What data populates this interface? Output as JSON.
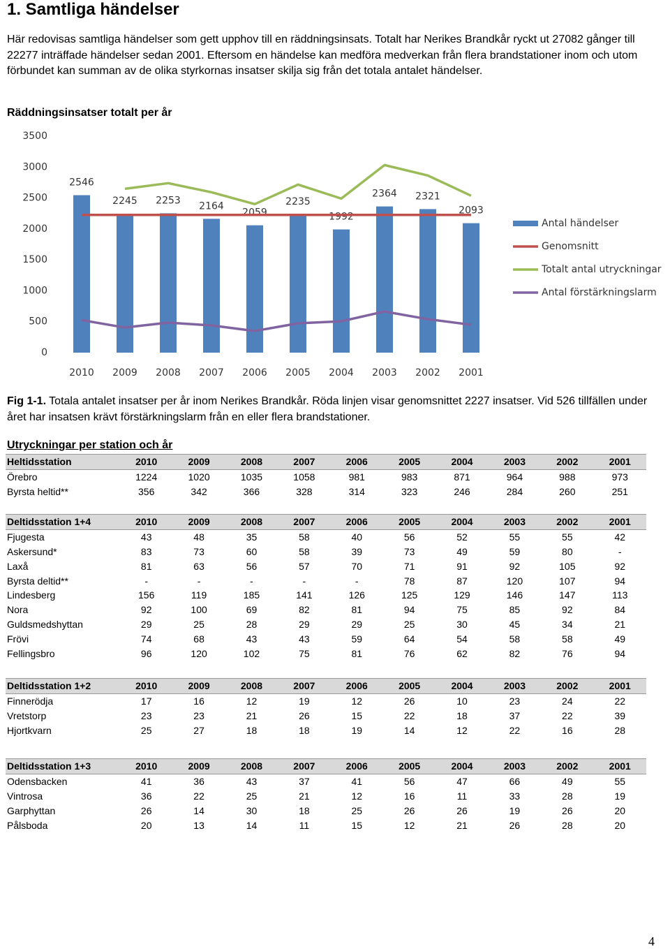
{
  "heading": "1. Samtliga händelser",
  "intro": "Här redovisas samtliga händelser som gett upphov till en räddningsinsats. Totalt har Nerikes Brandkår ryckt ut 27082 gånger till 22277 inträffade händelser sedan 2001. Eftersom en händelse kan medföra medverkan från flera brandstationer inom och utom förbundet kan summan av de olika styrkornas insatser skilja sig från det totala antalet händelser.",
  "chart_data": {
    "type": "bar",
    "title": "Räddningsinsatser totalt per år",
    "categories": [
      "2010",
      "2009",
      "2008",
      "2007",
      "2006",
      "2005",
      "2004",
      "2003",
      "2002",
      "2001"
    ],
    "ylim": [
      0,
      3500
    ],
    "yticks": [
      0,
      500,
      1000,
      1500,
      2000,
      2500,
      3000,
      3500
    ],
    "grid": false,
    "legend": "right",
    "series": [
      {
        "name": "Antal händelser",
        "type": "bar",
        "color": "#4f81bd",
        "values": [
          2546,
          2245,
          2253,
          2164,
          2059,
          2235,
          1992,
          2364,
          2321,
          2093
        ]
      },
      {
        "name": "Genomsnitt",
        "type": "line",
        "color": "#c0504d",
        "values": [
          2227,
          2227,
          2227,
          2227,
          2227,
          2227,
          2227,
          2227,
          2227,
          2227
        ]
      },
      {
        "name": "Totalt antal utryckningar",
        "type": "line",
        "color": "#9bbb59",
        "values": [
          null,
          2649,
          2740,
          2593,
          2401,
          2717,
          2491,
          3033,
          2864,
          2537
        ]
      },
      {
        "name": "Antal förstärkningslarm",
        "type": "line",
        "color": "#8064a2",
        "values": [
          526,
          406,
          485,
          440,
          350,
          474,
          507,
          665,
          541,
          451
        ]
      }
    ]
  },
  "caption": {
    "label": "Fig 1-1.",
    "text": "Totala antalet insatser per år inom Nerikes Brandkår. Röda linjen visar genomsnittet 2227 insatser. Vid 526 tillfällen under året har insatsen krävt förstärkningslarm från en eller flera brandstationer."
  },
  "tables_title": "Utryckningar per station och år",
  "tables": [
    {
      "header": [
        "Heltidsstation",
        "2010",
        "2009",
        "2008",
        "2007",
        "2006",
        "2005",
        "2004",
        "2003",
        "2002",
        "2001"
      ],
      "rows": [
        [
          "Örebro",
          "1224",
          "1020",
          "1035",
          "1058",
          "981",
          "983",
          "871",
          "964",
          "988",
          "973"
        ],
        [
          "Byrsta heltid**",
          "356",
          "342",
          "366",
          "328",
          "314",
          "323",
          "246",
          "284",
          "260",
          "251"
        ]
      ]
    },
    {
      "header": [
        "Deltidsstation 1+4",
        "2010",
        "2009",
        "2008",
        "2007",
        "2006",
        "2005",
        "2004",
        "2003",
        "2002",
        "2001"
      ],
      "rows": [
        [
          "Fjugesta",
          "43",
          "48",
          "35",
          "58",
          "40",
          "56",
          "52",
          "55",
          "55",
          "42"
        ],
        [
          "Askersund*",
          "83",
          "73",
          "60",
          "58",
          "39",
          "73",
          "49",
          "59",
          "80",
          "-"
        ],
        [
          "Laxå",
          "81",
          "63",
          "56",
          "57",
          "70",
          "71",
          "91",
          "92",
          "105",
          "92"
        ],
        [
          "Byrsta deltid**",
          "-",
          "-",
          "-",
          "-",
          "-",
          "78",
          "87",
          "120",
          "107",
          "94"
        ],
        [
          "Lindesberg",
          "156",
          "119",
          "185",
          "141",
          "126",
          "125",
          "129",
          "146",
          "147",
          "113"
        ],
        [
          "Nora",
          "92",
          "100",
          "69",
          "82",
          "81",
          "94",
          "75",
          "85",
          "92",
          "84"
        ],
        [
          "Guldsmedshyttan",
          "29",
          "25",
          "28",
          "29",
          "29",
          "25",
          "30",
          "45",
          "34",
          "21"
        ],
        [
          "Frövi",
          "74",
          "68",
          "43",
          "43",
          "59",
          "64",
          "54",
          "58",
          "58",
          "49"
        ],
        [
          "Fellingsbro",
          "96",
          "120",
          "102",
          "75",
          "81",
          "76",
          "62",
          "82",
          "76",
          "94"
        ]
      ]
    },
    {
      "header": [
        "Deltidsstation 1+2",
        "2010",
        "2009",
        "2008",
        "2007",
        "2006",
        "2005",
        "2004",
        "2003",
        "2002",
        "2001"
      ],
      "rows": [
        [
          "Finnerödja",
          "17",
          "16",
          "12",
          "19",
          "12",
          "26",
          "10",
          "23",
          "24",
          "22"
        ],
        [
          "Vretstorp",
          "23",
          "23",
          "21",
          "26",
          "15",
          "22",
          "18",
          "37",
          "22",
          "39"
        ],
        [
          "Hjortkvarn",
          "25",
          "27",
          "18",
          "18",
          "19",
          "14",
          "12",
          "22",
          "16",
          "28"
        ]
      ]
    },
    {
      "header": [
        "Deltidsstation 1+3",
        "2010",
        "2009",
        "2008",
        "2007",
        "2006",
        "2005",
        "2004",
        "2003",
        "2002",
        "2001"
      ],
      "rows": [
        [
          "Odensbacken",
          "41",
          "36",
          "43",
          "37",
          "41",
          "56",
          "47",
          "66",
          "49",
          "55"
        ],
        [
          "Vintrosa",
          "36",
          "22",
          "25",
          "21",
          "12",
          "16",
          "11",
          "33",
          "28",
          "19"
        ],
        [
          "Garphyttan",
          "26",
          "14",
          "30",
          "18",
          "25",
          "26",
          "26",
          "19",
          "26",
          "20"
        ],
        [
          "Pålsboda",
          "20",
          "13",
          "14",
          "11",
          "15",
          "12",
          "21",
          "26",
          "28",
          "20"
        ]
      ]
    }
  ],
  "page_number": "4"
}
